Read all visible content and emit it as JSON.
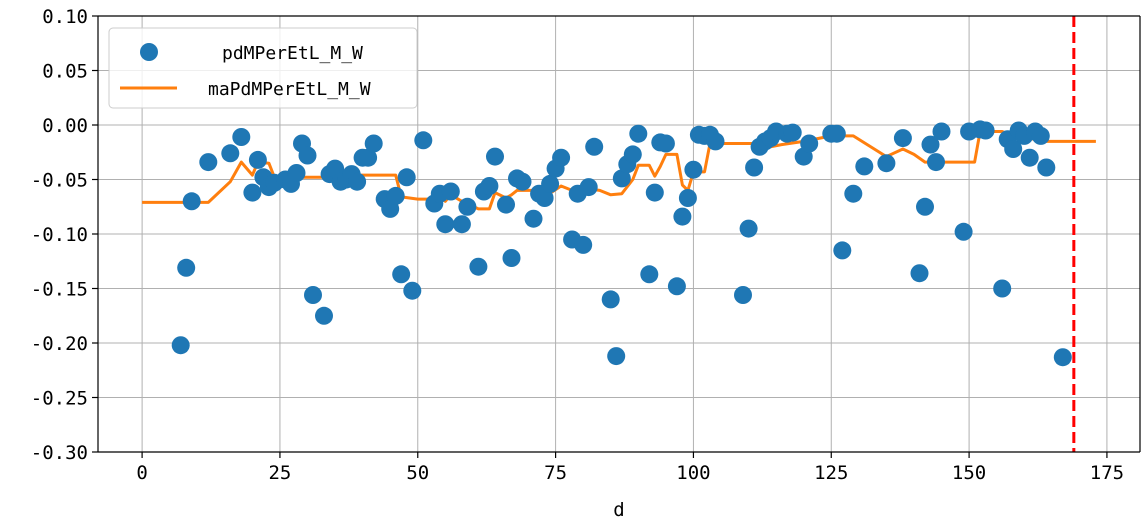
{
  "chart_data": {
    "type": "scatter",
    "xlabel": "d",
    "ylabel": "",
    "xlim": [
      -8,
      181
    ],
    "ylim": [
      -0.3,
      0.1
    ],
    "xticks": [
      0,
      25,
      50,
      75,
      100,
      125,
      150,
      175
    ],
    "xtick_labels": [
      "0",
      "25",
      "50",
      "75",
      "100",
      "125",
      "150",
      "175"
    ],
    "yticks": [
      -0.3,
      -0.25,
      -0.2,
      -0.15,
      -0.1,
      -0.05,
      0.0,
      0.05,
      0.1
    ],
    "ytick_labels": [
      "-0.30",
      "-0.25",
      "-0.20",
      "-0.15",
      "-0.10",
      "-0.05",
      "0.00",
      "0.05",
      "0.10"
    ],
    "grid": true,
    "legend_position": "top-left",
    "colors": {
      "scatter": "#1f77b4",
      "line": "#ff7f0e",
      "vline": "#ff0000",
      "grid": "#b0b0b0"
    },
    "series": [
      {
        "name": "pdMPerEtL_M_W",
        "kind": "scatter",
        "points": [
          [
            7,
            -0.202
          ],
          [
            8,
            -0.131
          ],
          [
            9,
            -0.07
          ],
          [
            12,
            -0.034
          ],
          [
            16,
            -0.026
          ],
          [
            18,
            -0.011
          ],
          [
            20,
            -0.062
          ],
          [
            21,
            -0.032
          ],
          [
            22,
            -0.048
          ],
          [
            23,
            -0.057
          ],
          [
            24,
            -0.053
          ],
          [
            26,
            -0.05
          ],
          [
            27,
            -0.054
          ],
          [
            28,
            -0.044
          ],
          [
            29,
            -0.017
          ],
          [
            30,
            -0.028
          ],
          [
            31,
            -0.156
          ],
          [
            33,
            -0.175
          ],
          [
            34,
            -0.045
          ],
          [
            35,
            -0.04
          ],
          [
            36,
            -0.052
          ],
          [
            37,
            -0.05
          ],
          [
            38,
            -0.045
          ],
          [
            39,
            -0.052
          ],
          [
            40,
            -0.03
          ],
          [
            41,
            -0.03
          ],
          [
            42,
            -0.017
          ],
          [
            44,
            -0.068
          ],
          [
            45,
            -0.077
          ],
          [
            46,
            -0.065
          ],
          [
            47,
            -0.137
          ],
          [
            48,
            -0.048
          ],
          [
            49,
            -0.152
          ],
          [
            51,
            -0.014
          ],
          [
            53,
            -0.072
          ],
          [
            54,
            -0.063
          ],
          [
            55,
            -0.091
          ],
          [
            56,
            -0.061
          ],
          [
            58,
            -0.091
          ],
          [
            59,
            -0.075
          ],
          [
            61,
            -0.13
          ],
          [
            62,
            -0.061
          ],
          [
            63,
            -0.056
          ],
          [
            64,
            -0.029
          ],
          [
            66,
            -0.073
          ],
          [
            67,
            -0.122
          ],
          [
            68,
            -0.049
          ],
          [
            69,
            -0.052
          ],
          [
            71,
            -0.086
          ],
          [
            72,
            -0.063
          ],
          [
            73,
            -0.067
          ],
          [
            74,
            -0.054
          ],
          [
            75,
            -0.04
          ],
          [
            76,
            -0.03
          ],
          [
            78,
            -0.105
          ],
          [
            79,
            -0.063
          ],
          [
            80,
            -0.11
          ],
          [
            81,
            -0.057
          ],
          [
            82,
            -0.02
          ],
          [
            85,
            -0.16
          ],
          [
            86,
            -0.212
          ],
          [
            87,
            -0.049
          ],
          [
            88,
            -0.036
          ],
          [
            89,
            -0.027
          ],
          [
            90,
            -0.008
          ],
          [
            92,
            -0.137
          ],
          [
            93,
            -0.062
          ],
          [
            94,
            -0.016
          ],
          [
            95,
            -0.017
          ],
          [
            97,
            -0.148
          ],
          [
            98,
            -0.084
          ],
          [
            99,
            -0.067
          ],
          [
            100,
            -0.041
          ],
          [
            101,
            -0.009
          ],
          [
            102,
            -0.01
          ],
          [
            103,
            -0.009
          ],
          [
            104,
            -0.015
          ],
          [
            109,
            -0.156
          ],
          [
            110,
            -0.095
          ],
          [
            111,
            -0.039
          ],
          [
            112,
            -0.02
          ],
          [
            113,
            -0.015
          ],
          [
            114,
            -0.012
          ],
          [
            115,
            -0.006
          ],
          [
            117,
            -0.008
          ],
          [
            118,
            -0.007
          ],
          [
            120,
            -0.029
          ],
          [
            121,
            -0.017
          ],
          [
            125,
            -0.008
          ],
          [
            126,
            -0.008
          ],
          [
            127,
            -0.115
          ],
          [
            129,
            -0.063
          ],
          [
            131,
            -0.038
          ],
          [
            135,
            -0.035
          ],
          [
            138,
            -0.012
          ],
          [
            141,
            -0.136
          ],
          [
            142,
            -0.075
          ],
          [
            143,
            -0.018
          ],
          [
            144,
            -0.034
          ],
          [
            145,
            -0.006
          ],
          [
            149,
            -0.098
          ],
          [
            150,
            -0.006
          ],
          [
            152,
            -0.004
          ],
          [
            153,
            -0.005
          ],
          [
            156,
            -0.15
          ],
          [
            157,
            -0.013
          ],
          [
            158,
            -0.022
          ],
          [
            159,
            -0.005
          ],
          [
            160,
            -0.01
          ],
          [
            161,
            -0.03
          ],
          [
            162,
            -0.006
          ],
          [
            163,
            -0.01
          ],
          [
            164,
            -0.039
          ],
          [
            167,
            -0.213
          ]
        ]
      },
      {
        "name": "maPdMPerEtL_M_W",
        "kind": "line",
        "points": [
          [
            0,
            -0.071
          ],
          [
            12,
            -0.071
          ],
          [
            16,
            -0.052
          ],
          [
            18,
            -0.034
          ],
          [
            20,
            -0.046
          ],
          [
            21,
            -0.034
          ],
          [
            23,
            -0.035
          ],
          [
            24,
            -0.048
          ],
          [
            34,
            -0.048
          ],
          [
            35,
            -0.046
          ],
          [
            46,
            -0.046
          ],
          [
            47,
            -0.066
          ],
          [
            50,
            -0.068
          ],
          [
            52,
            -0.068
          ],
          [
            53,
            -0.072
          ],
          [
            54,
            -0.065
          ],
          [
            55,
            -0.07
          ],
          [
            56,
            -0.064
          ],
          [
            58,
            -0.07
          ],
          [
            61,
            -0.077
          ],
          [
            63,
            -0.077
          ],
          [
            64,
            -0.062
          ],
          [
            66,
            -0.067
          ],
          [
            67,
            -0.064
          ],
          [
            68,
            -0.06
          ],
          [
            71,
            -0.06
          ],
          [
            73,
            -0.066
          ],
          [
            76,
            -0.056
          ],
          [
            78,
            -0.06
          ],
          [
            80,
            -0.058
          ],
          [
            83,
            -0.06
          ],
          [
            85,
            -0.064
          ],
          [
            87,
            -0.063
          ],
          [
            89,
            -0.05
          ],
          [
            90,
            -0.037
          ],
          [
            92,
            -0.037
          ],
          [
            93,
            -0.047
          ],
          [
            94,
            -0.038
          ],
          [
            95,
            -0.027
          ],
          [
            97,
            -0.027
          ],
          [
            98,
            -0.055
          ],
          [
            99,
            -0.06
          ],
          [
            100,
            -0.043
          ],
          [
            102,
            -0.043
          ],
          [
            103,
            -0.017
          ],
          [
            112,
            -0.017
          ],
          [
            114,
            -0.02
          ],
          [
            116,
            -0.018
          ],
          [
            120,
            -0.015
          ],
          [
            125,
            -0.01
          ],
          [
            129,
            -0.01
          ],
          [
            135,
            -0.029
          ],
          [
            138,
            -0.022
          ],
          [
            140,
            -0.027
          ],
          [
            142,
            -0.034
          ],
          [
            145,
            -0.034
          ],
          [
            151,
            -0.034
          ],
          [
            152,
            -0.006
          ],
          [
            156,
            -0.006
          ],
          [
            158,
            -0.01
          ],
          [
            159,
            -0.006
          ],
          [
            161,
            -0.012
          ],
          [
            163,
            -0.015
          ],
          [
            173,
            -0.015
          ]
        ]
      }
    ],
    "vline": {
      "x": 169
    }
  }
}
